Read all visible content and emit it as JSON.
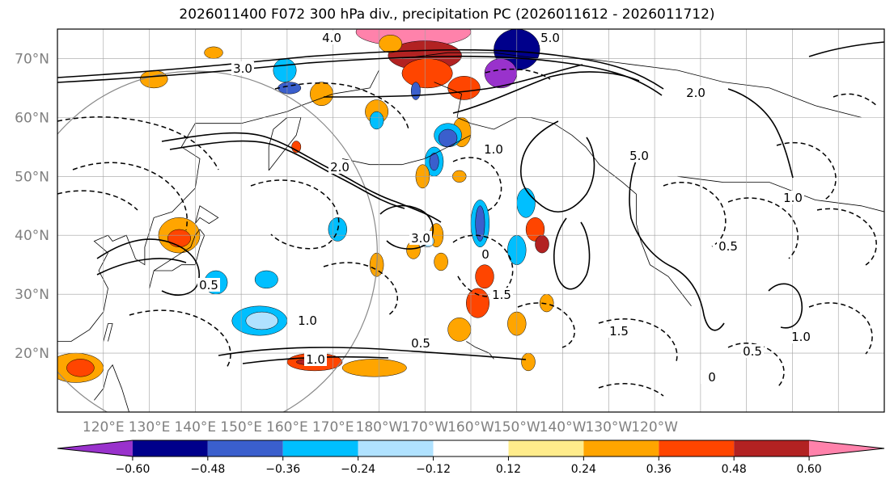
{
  "title": "2026011400 F072 300 hPa div., precipitation PC (2026011612 - 2026011712)",
  "chart_data": {
    "type": "contour-map",
    "title": "2026011400 F072 300 hPa div., precipitation PC (2026011612 - 2026011712)",
    "projection": "cylindrical, North Pacific",
    "lon_range": [
      110,
      290
    ],
    "lat_range": [
      10,
      75
    ],
    "lat_ticks": [
      "20°N",
      "30°N",
      "40°N",
      "50°N",
      "60°N",
      "70°N"
    ],
    "lon_ticks": [
      "120°E",
      "130°E",
      "140°E",
      "150°E",
      "160°E",
      "170°E",
      "180°W",
      "170°W",
      "160°W",
      "150°W",
      "140°W",
      "130°W",
      "120°W"
    ],
    "colorbar": {
      "levels": [
        -0.6,
        -0.48,
        -0.36,
        -0.24,
        -0.12,
        0.12,
        0.24,
        0.36,
        0.48,
        0.6
      ],
      "tick_labels": [
        "−0.60",
        "−0.48",
        "−0.36",
        "−0.24",
        "−0.12",
        "0.12",
        "0.24",
        "0.36",
        "0.48",
        "0.60"
      ],
      "colors": [
        "#9932cc",
        "#00008b",
        "#3a5fcd",
        "#00bfff",
        "#b0e2ff",
        "#ffffff",
        "#ffec8b",
        "#ffa500",
        "#ff4500",
        "#b22222",
        "#ff82ab"
      ],
      "extend": "both"
    },
    "contour_labels": [
      "5.0",
      "4.0",
      "3.0",
      "2.0",
      "1.0",
      "0.5",
      "0",
      "1.5",
      "3.0",
      "5.0",
      "1.0",
      "0.5",
      "1.0",
      "0",
      "1.0",
      "1.5",
      "0.5",
      "0.5",
      "1.0",
      "2.0"
    ],
    "fields": [
      {
        "name": "300 hPa divergence",
        "style": "contour lines, solid positive / dashed negative"
      },
      {
        "name": "precipitation PC",
        "style": "filled shading"
      }
    ]
  },
  "colors": {
    "frame": "#000000",
    "grid": "#a0a0a0",
    "coast": "#000000",
    "axis_label": "#808080"
  }
}
